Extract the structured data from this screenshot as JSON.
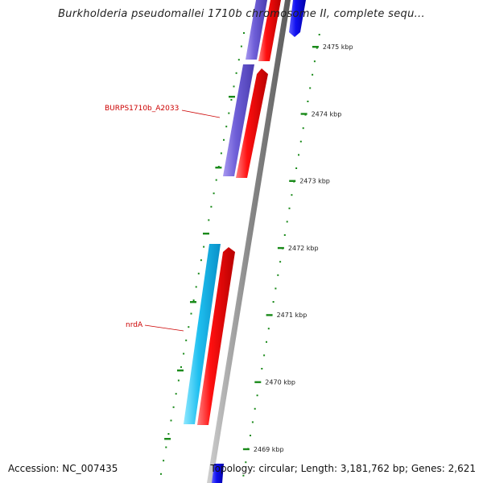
{
  "title": "Burkholderia pseudomallei 1710b chromosome II, complete sequ...",
  "footer": {
    "accession": "Accession: NC_007435",
    "topology": "Topology: circular; Length: 3,181,762 bp; Genes: 2,621"
  },
  "scale": {
    "unit": "kbp",
    "ticks": [
      {
        "value": 2475,
        "label": "2475 kbp"
      },
      {
        "value": 2474,
        "label": "2474 kbp"
      },
      {
        "value": 2473,
        "label": "2473 kbp"
      },
      {
        "value": 2472,
        "label": "2472 kbp"
      },
      {
        "value": 2471,
        "label": "2471 kbp"
      },
      {
        "value": 2470,
        "label": "2470 kbp"
      },
      {
        "value": 2469,
        "label": "2469 kbp"
      }
    ]
  },
  "genes": [
    {
      "label": "BURPS1710b_A2033"
    },
    {
      "label": "nrdA"
    }
  ],
  "colors": {
    "forward_cds": "#ff0000",
    "forward_gene": "#7060d8",
    "nrdA_gene": "#22c0f0",
    "reverse_feature": "#1010f0",
    "backbone": "#8a8a8a",
    "ticks": "#1a8a1a",
    "label": "#cc0000"
  }
}
